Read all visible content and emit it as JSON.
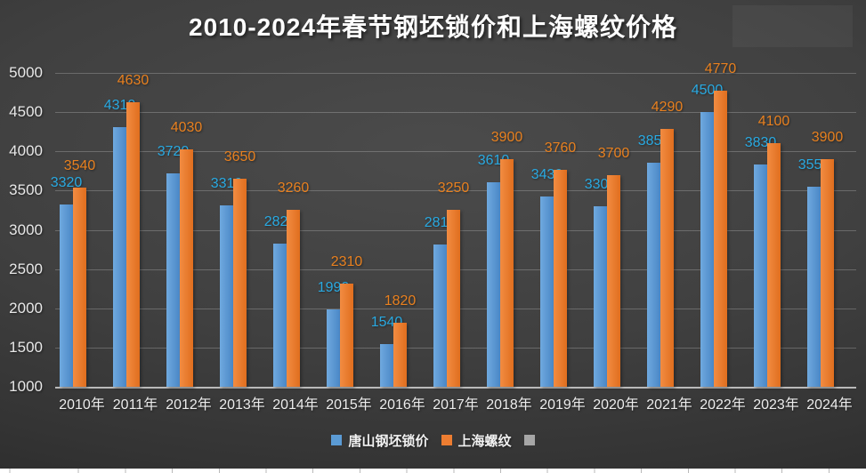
{
  "title": "2010-2024年春节钢坯锁价和上海螺纹价格",
  "chart_data": {
    "type": "bar",
    "title": "2010-2024年春节钢坯锁价和上海螺纹价格",
    "categories": [
      "2010年",
      "2011年",
      "2012年",
      "2013年",
      "2014年",
      "2015年",
      "2016年",
      "2017年",
      "2018年",
      "2019年",
      "2020年",
      "2021年",
      "2022年",
      "2023年",
      "2024年"
    ],
    "series": [
      {
        "name": "唐山钢坯锁价",
        "color": "#5B9BD5",
        "color_light": "#6FA9DF",
        "color_dark": "#4A87C6",
        "label_color": "#29A9E1",
        "values": [
          3320,
          4310,
          3720,
          3310,
          2820,
          1990,
          1540,
          2810,
          3610,
          3430,
          3300,
          3850,
          4500,
          3830,
          3550
        ]
      },
      {
        "name": "上海螺纹",
        "color": "#ED7D31",
        "color_light": "#F28C42",
        "color_dark": "#E06E1E",
        "label_color": "#E8801F",
        "values": [
          3540,
          4630,
          4030,
          3650,
          3260,
          2310,
          1820,
          3250,
          3900,
          3760,
          3700,
          4290,
          4770,
          4100,
          3900
        ]
      },
      {
        "name": "",
        "color": "#A6A6A6",
        "values": []
      }
    ],
    "xlabel": "",
    "ylabel": "",
    "ylim": [
      1000,
      5000
    ],
    "yticks": [
      1000,
      1500,
      2000,
      2500,
      3000,
      3500,
      4000,
      4500,
      5000
    ],
    "grid": true,
    "data_labels": true,
    "legend_position": "bottom"
  }
}
